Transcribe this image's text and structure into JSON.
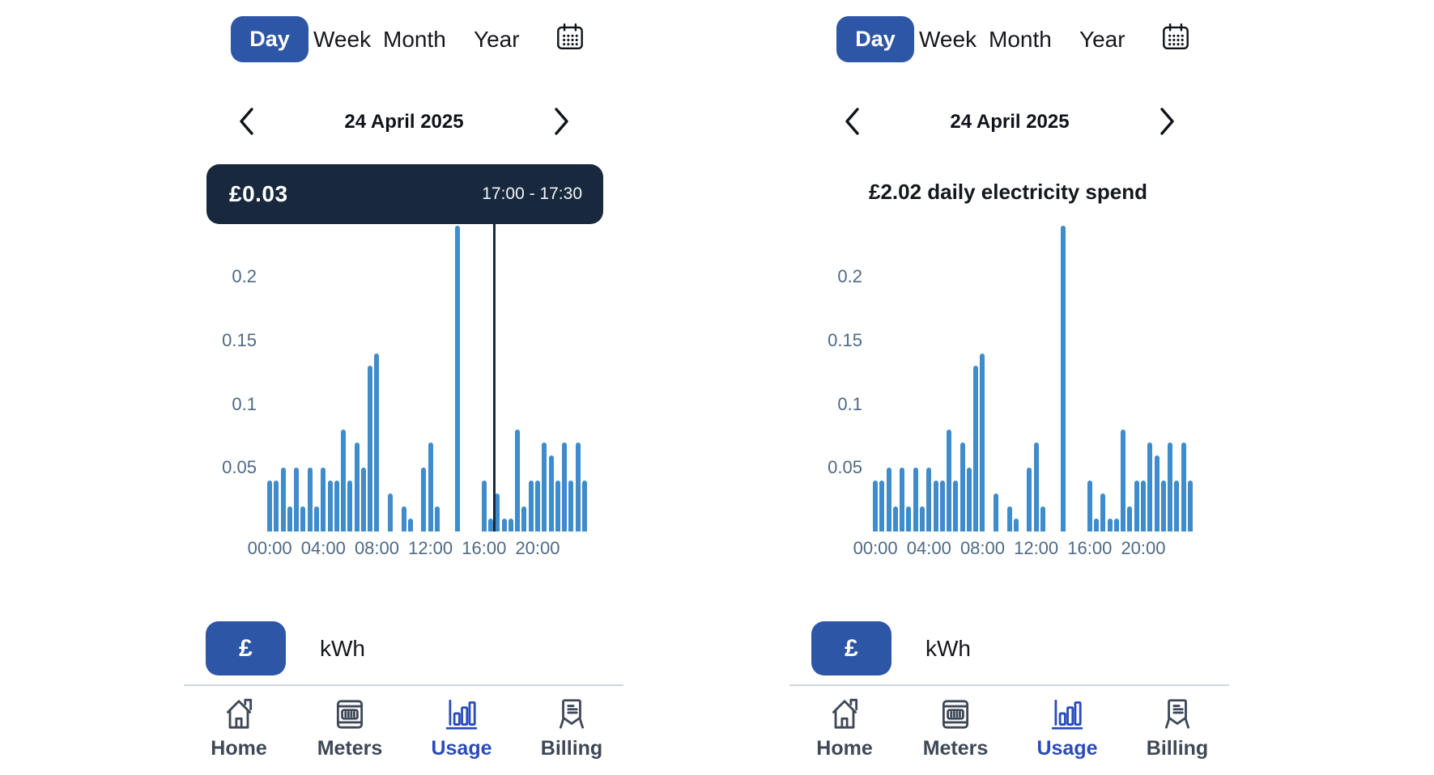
{
  "colors": {
    "primary_blue": "#2e56a6",
    "bar_blue": "#3f8ccd",
    "navy": "#18293e",
    "nav_active_blue": "#2b4bbb",
    "text_dark": "#15171c",
    "axis_label": "#4e6a85",
    "nav_slate": "#3e4857",
    "divider": "#cfd6dd"
  },
  "panels": [
    {
      "tabs": {
        "day": "Day",
        "week": "Week",
        "month": "Month",
        "year": "Year",
        "selected": "Day"
      },
      "date": "24 April 2025",
      "tooltip": {
        "amount": "£0.03",
        "time_range": "17:00 - 17:30"
      },
      "unit_toggle": {
        "currency": "£",
        "energy": "kWh",
        "selected": "£"
      },
      "nav": [
        {
          "label": "Home",
          "icon": "home-icon",
          "active": false
        },
        {
          "label": "Meters",
          "icon": "meters-icon",
          "active": false
        },
        {
          "label": "Usage",
          "icon": "usage-icon",
          "active": true
        },
        {
          "label": "Billing",
          "icon": "billing-icon",
          "active": false
        }
      ]
    },
    {
      "tabs": {
        "day": "Day",
        "week": "Week",
        "month": "Month",
        "year": "Year",
        "selected": "Day"
      },
      "date": "24 April 2025",
      "headline": "£2.02 daily electricity spend",
      "unit_toggle": {
        "currency": "£",
        "energy": "kWh",
        "selected": "£"
      },
      "nav": [
        {
          "label": "Home",
          "icon": "home-icon",
          "active": false
        },
        {
          "label": "Meters",
          "icon": "meters-icon",
          "active": false
        },
        {
          "label": "Usage",
          "icon": "usage-icon",
          "active": true
        },
        {
          "label": "Billing",
          "icon": "billing-icon",
          "active": false
        }
      ]
    }
  ],
  "chart_data": [
    {
      "type": "bar",
      "title": "",
      "xlabel": "",
      "ylabel": "",
      "ylim": [
        0,
        0.25
      ],
      "grid": false,
      "yticks": [
        0.05,
        0.1,
        0.15,
        0.2
      ],
      "ytick_labels": [
        "0.05",
        "0.1",
        "0.15",
        "0.2"
      ],
      "xtick_slots": [
        0,
        8,
        16,
        24,
        32,
        40
      ],
      "xtick_labels": [
        "00:00",
        "04:00",
        "08:00",
        "12:00",
        "16:00",
        "20:00"
      ],
      "categories": [
        "00:00",
        "00:30",
        "01:00",
        "01:30",
        "02:00",
        "02:30",
        "03:00",
        "03:30",
        "04:00",
        "04:30",
        "05:00",
        "05:30",
        "06:00",
        "06:30",
        "07:00",
        "07:30",
        "08:00",
        "08:30",
        "09:00",
        "09:30",
        "10:00",
        "10:30",
        "11:00",
        "11:30",
        "12:00",
        "12:30",
        "13:00",
        "13:30",
        "14:00",
        "14:30",
        "15:00",
        "15:30",
        "16:00",
        "16:30",
        "17:00",
        "17:30",
        "18:00",
        "18:30",
        "19:00",
        "19:30",
        "20:00",
        "20:30",
        "21:00",
        "21:30",
        "22:00",
        "22:30",
        "23:00",
        "23:30"
      ],
      "values": [
        0.04,
        0.04,
        0.05,
        0.02,
        0.05,
        0.02,
        0.05,
        0.02,
        0.05,
        0.04,
        0.04,
        0.08,
        0.04,
        0.07,
        0.05,
        0.13,
        0.14,
        0,
        0.03,
        0,
        0.02,
        0.01,
        0,
        0.05,
        0.07,
        0.02,
        0,
        0,
        0.24,
        0,
        0,
        0,
        0.04,
        0.01,
        0.03,
        0.01,
        0.01,
        0.08,
        0.02,
        0.04,
        0.04,
        0.07,
        0.06,
        0.04,
        0.07,
        0.04,
        0.07,
        0.04
      ],
      "selection": {
        "slot": 34,
        "time_range": "17:00 - 17:30",
        "amount": "£0.03"
      }
    },
    {
      "type": "bar",
      "title": "£2.02 daily electricity spend",
      "xlabel": "",
      "ylabel": "",
      "ylim": [
        0,
        0.25
      ],
      "grid": false,
      "yticks": [
        0.05,
        0.1,
        0.15,
        0.2
      ],
      "ytick_labels": [
        "0.05",
        "0.1",
        "0.15",
        "0.2"
      ],
      "xtick_slots": [
        0,
        8,
        16,
        24,
        32,
        40
      ],
      "xtick_labels": [
        "00:00",
        "04:00",
        "08:00",
        "12:00",
        "16:00",
        "20:00"
      ],
      "categories": [
        "00:00",
        "00:30",
        "01:00",
        "01:30",
        "02:00",
        "02:30",
        "03:00",
        "03:30",
        "04:00",
        "04:30",
        "05:00",
        "05:30",
        "06:00",
        "06:30",
        "07:00",
        "07:30",
        "08:00",
        "08:30",
        "09:00",
        "09:30",
        "10:00",
        "10:30",
        "11:00",
        "11:30",
        "12:00",
        "12:30",
        "13:00",
        "13:30",
        "14:00",
        "14:30",
        "15:00",
        "15:30",
        "16:00",
        "16:30",
        "17:00",
        "17:30",
        "18:00",
        "18:30",
        "19:00",
        "19:30",
        "20:00",
        "20:30",
        "21:00",
        "21:30",
        "22:00",
        "22:30",
        "23:00",
        "23:30"
      ],
      "values": [
        0.04,
        0.04,
        0.05,
        0.02,
        0.05,
        0.02,
        0.05,
        0.02,
        0.05,
        0.04,
        0.04,
        0.08,
        0.04,
        0.07,
        0.05,
        0.13,
        0.14,
        0,
        0.03,
        0,
        0.02,
        0.01,
        0,
        0.05,
        0.07,
        0.02,
        0,
        0,
        0.24,
        0,
        0,
        0,
        0.04,
        0.01,
        0.03,
        0.01,
        0.01,
        0.08,
        0.02,
        0.04,
        0.04,
        0.07,
        0.06,
        0.04,
        0.07,
        0.04,
        0.07,
        0.04
      ]
    }
  ]
}
